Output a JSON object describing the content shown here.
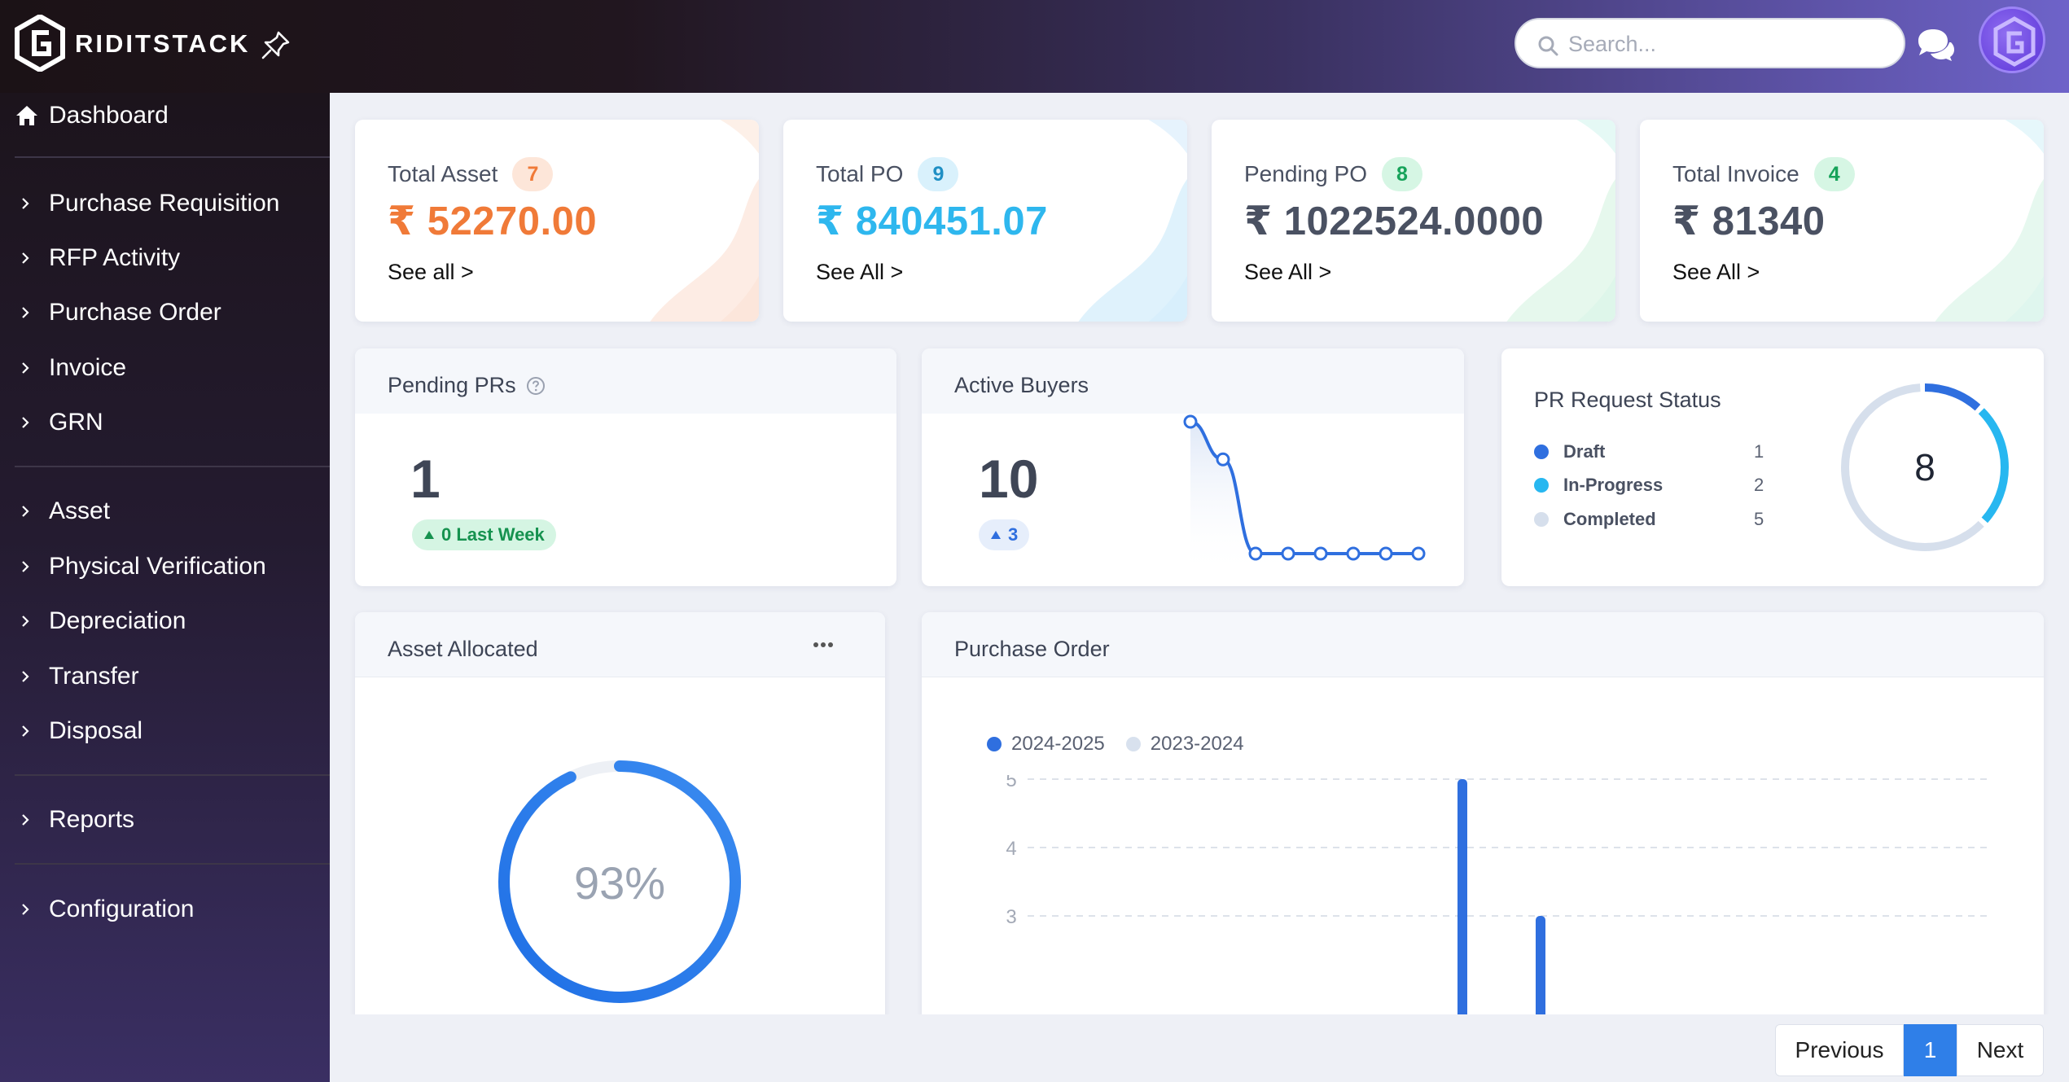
{
  "app": {
    "brand": "RIDITSTACK"
  },
  "search": {
    "placeholder": "Search..."
  },
  "sidebar": {
    "dashboard_label": "Dashboard",
    "items": [
      "Purchase Requisition",
      "RFP Activity",
      "Purchase Order",
      "Invoice",
      "GRN",
      "Asset",
      "Physical Verification",
      "Depreciation",
      "Transfer",
      "Disposal",
      "Reports",
      "Configuration"
    ]
  },
  "stats": [
    {
      "title": "Total Asset",
      "count": "7",
      "value": "₹ 52270.00",
      "link": "See all >",
      "color": "#f07a38",
      "badge_bg": "#fde6d9",
      "badge_fg": "#f07a38"
    },
    {
      "title": "Total PO",
      "count": "9",
      "value": "₹ 840451.07",
      "link": "See All >",
      "color": "#2eb7ee",
      "badge_bg": "#d9f1fc",
      "badge_fg": "#1f8fc4"
    },
    {
      "title": "Pending PO",
      "count": "8",
      "value": "₹ 1022524.0000",
      "link": "See All >",
      "color": "#4a5162",
      "badge_bg": "#d6f6e4",
      "badge_fg": "#17a35a"
    },
    {
      "title": "Total Invoice",
      "count": "4",
      "value": "₹ 81340",
      "link": "See All >",
      "color": "#4a5162",
      "badge_bg": "#d6f6e4",
      "badge_fg": "#17a35a"
    }
  ],
  "pending_prs": {
    "title": "Pending PRs",
    "value": "1",
    "trend": "0 Last Week"
  },
  "active_buyers": {
    "title": "Active Buyers",
    "value": "10",
    "trend": "3",
    "sparkline": [
      10,
      8,
      3,
      3,
      3,
      3,
      3,
      3
    ]
  },
  "pr_status": {
    "title": "PR Request Status",
    "total": "8",
    "items": [
      {
        "label": "Draft",
        "count": "1",
        "color": "#2f6fdf"
      },
      {
        "label": "In-Progress",
        "count": "2",
        "color": "#27b7f0"
      },
      {
        "label": "Completed",
        "count": "5",
        "color": "#d6dfec"
      }
    ]
  },
  "asset_allocated": {
    "title": "Asset Allocated",
    "percent_label": "93%",
    "percent": 93
  },
  "purchase_order": {
    "title": "Purchase Order",
    "chart_data": {
      "type": "bar",
      "series": [
        {
          "name": "2024-2025",
          "color": "#2f6fdf"
        },
        {
          "name": "2023-2024",
          "color": "#d8e1ee"
        }
      ],
      "y_ticks": [
        "5",
        "4",
        "3"
      ],
      "bars": [
        {
          "value": 5
        },
        {
          "value": 3
        }
      ]
    }
  },
  "pagination": {
    "previous": "Previous",
    "current": "1",
    "next": "Next"
  }
}
